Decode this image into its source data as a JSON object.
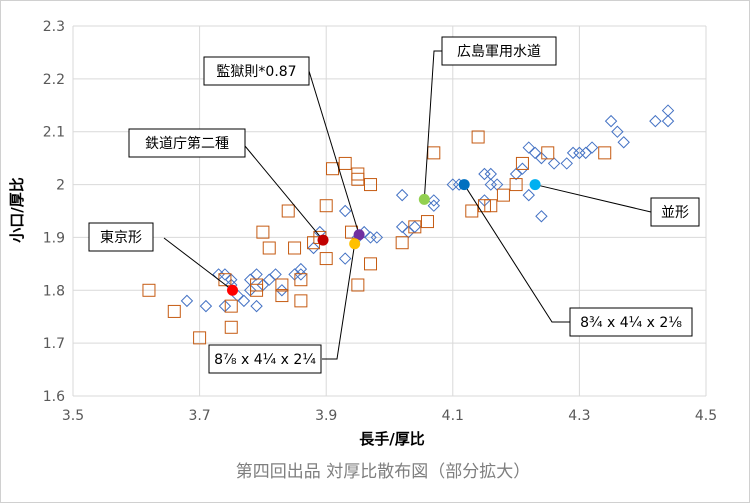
{
  "chart_data": {
    "type": "scatter",
    "caption": "第四回出品 対厚比散布図（部分拡大）",
    "xlabel": "長手/厚比",
    "ylabel": "小口/厚比",
    "xlim": [
      3.5,
      4.5
    ],
    "ylim": [
      1.6,
      2.3
    ],
    "xticks": [
      "3.5",
      "3.7",
      "3.9",
      "4.1",
      "4.3",
      "4.5"
    ],
    "yticks": [
      "1.6",
      "1.7",
      "1.8",
      "1.9",
      "2",
      "2.1",
      "2.2",
      "2.3"
    ],
    "grid": true,
    "series": [
      {
        "marker": "diamond",
        "color": "#4472c4",
        "points": [
          [
            3.68,
            1.78
          ],
          [
            3.71,
            1.77
          ],
          [
            3.73,
            1.83
          ],
          [
            3.74,
            1.83
          ],
          [
            3.74,
            1.77
          ],
          [
            3.75,
            1.82
          ],
          [
            3.75,
            1.81
          ],
          [
            3.76,
            1.79
          ],
          [
            3.77,
            1.78
          ],
          [
            3.78,
            1.8
          ],
          [
            3.78,
            1.82
          ],
          [
            3.79,
            1.83
          ],
          [
            3.79,
            1.77
          ],
          [
            3.8,
            1.81
          ],
          [
            3.81,
            1.82
          ],
          [
            3.82,
            1.83
          ],
          [
            3.83,
            1.8
          ],
          [
            3.85,
            1.83
          ],
          [
            3.86,
            1.84
          ],
          [
            3.86,
            1.83
          ],
          [
            3.88,
            1.88
          ],
          [
            3.89,
            1.91
          ],
          [
            3.93,
            1.95
          ],
          [
            3.93,
            1.86
          ],
          [
            3.95,
            1.9
          ],
          [
            3.96,
            1.91
          ],
          [
            3.97,
            1.9
          ],
          [
            3.98,
            1.9
          ],
          [
            4.02,
            1.98
          ],
          [
            4.02,
            1.92
          ],
          [
            4.03,
            1.91
          ],
          [
            4.04,
            1.92
          ],
          [
            4.07,
            1.97
          ],
          [
            4.07,
            1.96
          ],
          [
            4.1,
            2.0
          ],
          [
            4.11,
            2.0
          ],
          [
            4.15,
            1.97
          ],
          [
            4.15,
            2.02
          ],
          [
            4.16,
            2.02
          ],
          [
            4.16,
            2.0
          ],
          [
            4.17,
            2.0
          ],
          [
            4.2,
            2.02
          ],
          [
            4.21,
            2.03
          ],
          [
            4.22,
            2.07
          ],
          [
            4.22,
            1.98
          ],
          [
            4.23,
            2.06
          ],
          [
            4.24,
            2.05
          ],
          [
            4.24,
            1.94
          ],
          [
            4.26,
            2.04
          ],
          [
            4.28,
            2.04
          ],
          [
            4.29,
            2.06
          ],
          [
            4.3,
            2.06
          ],
          [
            4.31,
            2.06
          ],
          [
            4.32,
            2.07
          ],
          [
            4.35,
            2.12
          ],
          [
            4.36,
            2.1
          ],
          [
            4.37,
            2.08
          ],
          [
            4.42,
            2.12
          ],
          [
            4.44,
            2.14
          ],
          [
            4.44,
            2.12
          ]
        ]
      },
      {
        "marker": "square",
        "color": "#c55a11",
        "points": [
          [
            3.62,
            1.8
          ],
          [
            3.66,
            1.76
          ],
          [
            3.7,
            1.71
          ],
          [
            3.74,
            1.82
          ],
          [
            3.75,
            1.77
          ],
          [
            3.75,
            1.73
          ],
          [
            3.79,
            1.8
          ],
          [
            3.79,
            1.81
          ],
          [
            3.8,
            1.91
          ],
          [
            3.81,
            1.88
          ],
          [
            3.83,
            1.79
          ],
          [
            3.83,
            1.81
          ],
          [
            3.84,
            1.95
          ],
          [
            3.85,
            1.88
          ],
          [
            3.86,
            1.82
          ],
          [
            3.86,
            1.78
          ],
          [
            3.88,
            1.89
          ],
          [
            3.89,
            1.9
          ],
          [
            3.9,
            1.96
          ],
          [
            3.9,
            1.86
          ],
          [
            3.91,
            2.03
          ],
          [
            3.93,
            2.04
          ],
          [
            3.94,
            1.91
          ],
          [
            3.95,
            2.01
          ],
          [
            3.95,
            2.02
          ],
          [
            3.95,
            1.81
          ],
          [
            3.97,
            2.0
          ],
          [
            3.97,
            1.85
          ],
          [
            4.02,
            1.89
          ],
          [
            4.04,
            1.92
          ],
          [
            4.06,
            1.93
          ],
          [
            4.07,
            2.06
          ],
          [
            4.13,
            1.95
          ],
          [
            4.14,
            2.09
          ],
          [
            4.15,
            1.96
          ],
          [
            4.16,
            1.96
          ],
          [
            4.18,
            1.98
          ],
          [
            4.2,
            2.0
          ],
          [
            4.21,
            2.04
          ],
          [
            4.25,
            2.06
          ],
          [
            4.34,
            2.06
          ]
        ]
      }
    ],
    "highlights": [
      {
        "label": "東京形",
        "x": 3.752,
        "y": 1.8,
        "color": "#ff0000"
      },
      {
        "label": "鉄道庁第二種",
        "x": 3.895,
        "y": 1.895,
        "color": "#c00000"
      },
      {
        "label": "監獄則*0.87",
        "x": 3.952,
        "y": 1.905,
        "color": "#7030a0"
      },
      {
        "label": "8⅞ x 4¼ x 2¼",
        "x": 3.945,
        "y": 1.888,
        "color": "#ffc000"
      },
      {
        "label": "広島軍用水道",
        "x": 4.055,
        "y": 1.972,
        "color": "#92d050"
      },
      {
        "label": "8¾ x 4¼ x 2⅛",
        "x": 4.118,
        "y": 2.0,
        "color": "#0070c0"
      },
      {
        "label": "並形",
        "x": 4.23,
        "y": 2.0,
        "color": "#00b0f0"
      }
    ]
  }
}
